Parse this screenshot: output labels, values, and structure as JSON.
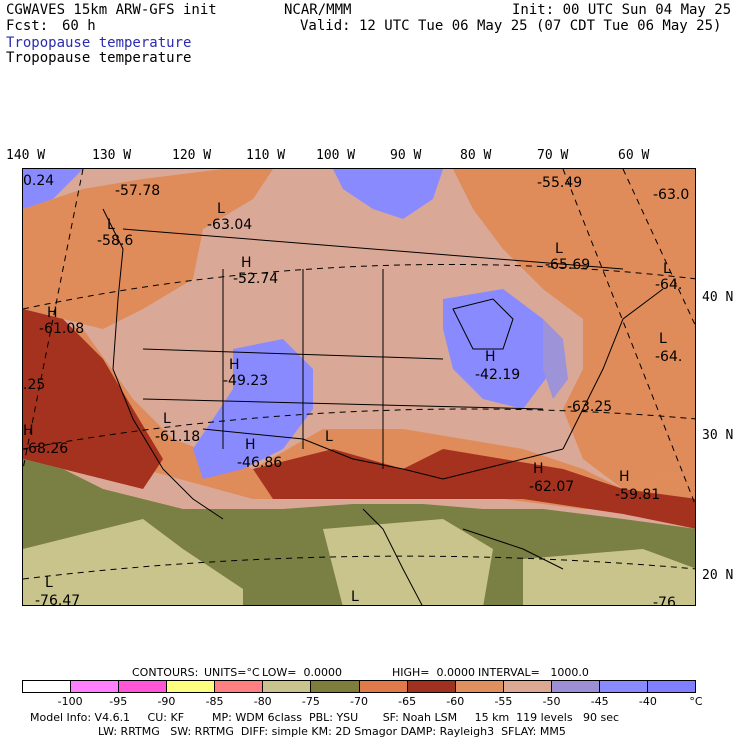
{
  "header": {
    "model": "CGWAVES 15km ARW-GFS init",
    "org": "NCAR/MMM",
    "init": "Init: 00 UTC Sun 04 May 25",
    "fcst_label": "Fcst:",
    "fcst_value": "60 h",
    "valid": "Valid: 12 UTC Tue 06 May 25 (07 CDT Tue 06 May 25)",
    "field_title_1": "Tropopause temperature",
    "field_title_2": "Tropopause temperature"
  },
  "lon_labels": [
    "140 W",
    "130 W",
    "120 W",
    "110 W",
    "100 W",
    "90 W",
    "80 W",
    "70 W",
    "60 W"
  ],
  "lat_labels": [
    "40 N",
    "30 N",
    "20 N"
  ],
  "map_labels": [
    {
      "text": "0.24"
    },
    {
      "text": "-57.78"
    },
    {
      "text": "L"
    },
    {
      "text": "-58.6"
    },
    {
      "text": "L"
    },
    {
      "text": "-63.04"
    },
    {
      "text": "-55.49"
    },
    {
      "text": "-63.0"
    },
    {
      "text": "H"
    },
    {
      "text": "-52.74"
    },
    {
      "text": "L"
    },
    {
      "text": "-65.69"
    },
    {
      "text": "L"
    },
    {
      "text": "-64."
    },
    {
      "text": "H"
    },
    {
      "text": "-61.08"
    },
    {
      "text": "L"
    },
    {
      "text": "-64."
    },
    {
      "text": "H"
    },
    {
      "text": "-49.23"
    },
    {
      "text": "H"
    },
    {
      "text": "-42.19"
    },
    {
      "text": ".25"
    },
    {
      "text": "-63.25"
    },
    {
      "text": "L"
    },
    {
      "text": "-61.18"
    },
    {
      "text": "L"
    },
    {
      "text": "H"
    },
    {
      "text": "-68.26"
    },
    {
      "text": "H"
    },
    {
      "text": "-46.86"
    },
    {
      "text": "H"
    },
    {
      "text": "-62.07"
    },
    {
      "text": "H"
    },
    {
      "text": "-59.81"
    },
    {
      "text": "L"
    },
    {
      "text": "-76.47"
    },
    {
      "text": "L"
    },
    {
      "text": "-76"
    }
  ],
  "contour_info": {
    "contours": "CONTOURS:",
    "units": "UNITS=°C",
    "low": "LOW=  0.0000",
    "high": "HIGH=  0.0000",
    "interval": "INTERVAL=   1000.0"
  },
  "colorbar": {
    "ticks": [
      "-100",
      "-95",
      "-90",
      "-85",
      "-80",
      "-75",
      "-70",
      "-65",
      "-60",
      "-55",
      "-50",
      "-45",
      "-40",
      "°C"
    ],
    "colors": [
      "#ffffff",
      "#ff80ff",
      "#ff55d6",
      "#ffff7f",
      "#ff8080",
      "#c9c48e",
      "#7d7d3c",
      "#e07a4a",
      "#a03020",
      "#e0905e",
      "#dba993",
      "#9d8fd6",
      "#8a8aff",
      "#7f7fff"
    ]
  },
  "model_info": {
    "line1": "Model Info: V4.6.1     CU: KF        MP: WDM 6class  PBL: YSU       SF: Noah LSM     15 km  119 levels   90 sec",
    "line2": "LW: RRTMG   SW: RRTMG  DIFF: simple KM: 2D Smagor DAMP: Rayleigh3  SFLAY: MM5"
  },
  "colors": {
    "pale_orange": "#d9a896",
    "orange": "#df8b5a",
    "dark_red": "#a4321f",
    "olive": "#7a7f44",
    "khaki": "#c9c48c",
    "blue_purple": "#8a8aff",
    "lavender": "#9c93d8"
  }
}
